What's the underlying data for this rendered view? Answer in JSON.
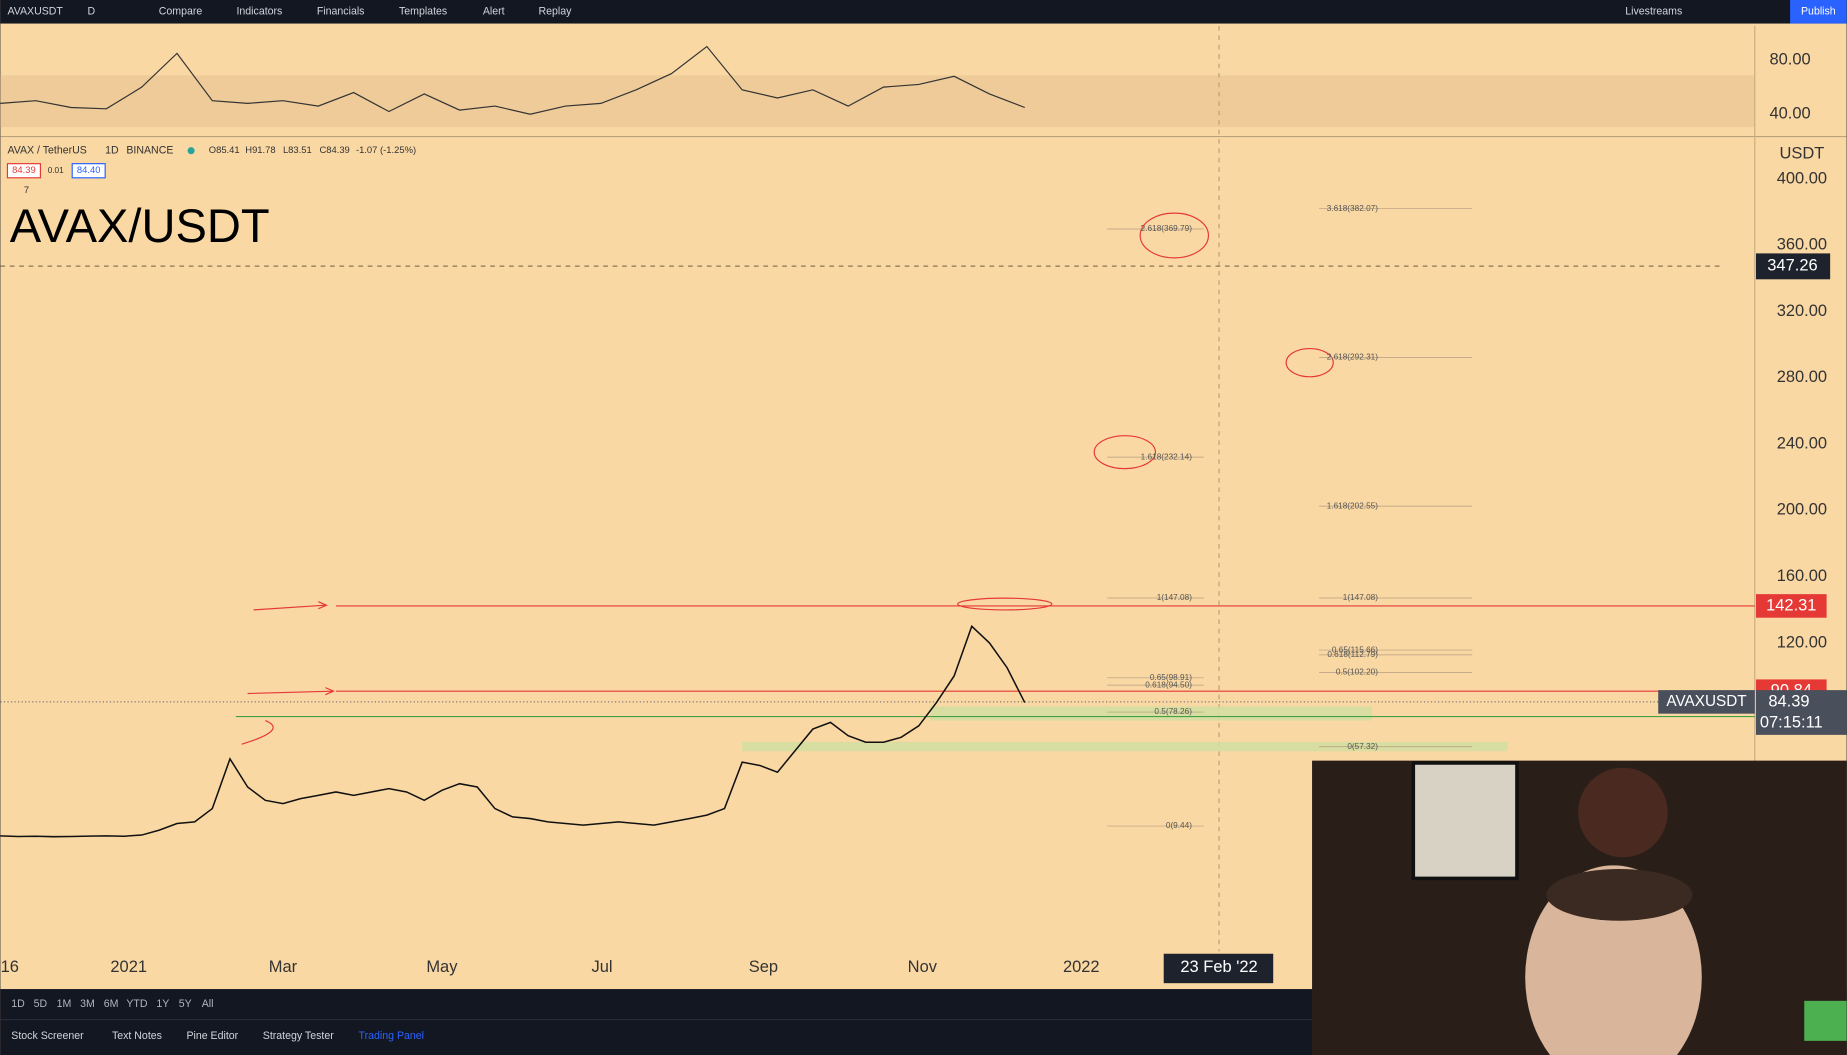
{
  "toolbar": {
    "symbol": "AVAXUSDT",
    "interval": "D",
    "items": [
      "Compare",
      "Indicators",
      "Financials",
      "Templates",
      "Alert",
      "Replay"
    ],
    "livestreams": "Livestreams",
    "publish": "Publish"
  },
  "legend": {
    "name": "AVAX / TetherUS",
    "interval": "1D",
    "exchange": "BINANCE",
    "open": "O85.41",
    "high": "H91.78",
    "low": "L83.51",
    "close": "C84.39",
    "change": "-1.07 (-1.25%)",
    "bid": "84.39",
    "spread": "0.01",
    "ask": "84.40",
    "indicator_count": "7"
  },
  "chart": {
    "title": "AVAX/USDT",
    "currency": "USDT",
    "price_ticks": [
      {
        "value": 400,
        "label": "400.00"
      },
      {
        "value": 360,
        "label": "360.00"
      },
      {
        "value": 320,
        "label": "320.00"
      },
      {
        "value": 280,
        "label": "280.00"
      },
      {
        "value": 240,
        "label": "240.00"
      },
      {
        "value": 200,
        "label": "200.00"
      },
      {
        "value": 160,
        "label": "160.00"
      },
      {
        "value": 120,
        "label": "120.00"
      }
    ],
    "rsi_ticks": [
      {
        "value": 80,
        "label": "80.00"
      },
      {
        "value": 40,
        "label": "40.00"
      }
    ],
    "time_labels": [
      "16",
      "2021",
      "Mar",
      "May",
      "Jul",
      "Sep",
      "Nov",
      "2022"
    ],
    "crosshair_date": "23 Feb '22",
    "crosshair_price": 347.26,
    "levels": [
      {
        "value": 142.31,
        "color": "#e53935"
      },
      {
        "value": 90.84,
        "color": "#e53935"
      },
      {
        "value": 75.54,
        "color": "#43a047"
      }
    ],
    "last_price": 84.39,
    "symbol_tag": "AVAXUSDT",
    "countdown": "07:15:11",
    "fib_left": [
      {
        "value": 369.79,
        "label": "2.618(369.79)"
      },
      {
        "value": 232.14,
        "label": "1.618(232.14)"
      },
      {
        "value": 147.08,
        "label": "1(147.08)"
      },
      {
        "value": 98.91,
        "label": "0.65(98.91)"
      },
      {
        "value": 94.5,
        "label": "0.618(94.50)"
      },
      {
        "value": 78.26,
        "label": "0.5(78.26)"
      },
      {
        "value": 9.44,
        "label": "0(9.44)"
      }
    ],
    "fib_right": [
      {
        "value": 382.07,
        "label": "3.618(382.07)"
      },
      {
        "value": 292.31,
        "label": "2.618(292.31)"
      },
      {
        "value": 202.55,
        "label": "1.618(202.55)"
      },
      {
        "value": 147.08,
        "label": "1(147.08)"
      },
      {
        "value": 115.66,
        "label": "0.65(115.66)"
      },
      {
        "value": 112.79,
        "label": "0.618(112.79)"
      },
      {
        "value": 102.2,
        "label": "0.5(102.20)"
      },
      {
        "value": 57.32,
        "label": "0(57.32)"
      }
    ],
    "price": [
      3.5,
      3.2,
      3.3,
      3,
      3.2,
      3.4,
      3.5,
      3.3,
      4,
      7,
      11,
      12,
      20,
      50,
      33,
      25,
      23,
      26,
      28,
      30,
      28,
      30,
      32,
      30,
      25,
      31,
      35,
      33,
      20,
      15,
      14,
      12,
      11,
      10,
      11,
      12,
      11,
      10,
      12,
      14,
      16,
      20,
      48,
      46,
      42,
      55,
      68,
      72,
      64,
      60,
      60,
      63,
      70,
      84,
      100,
      130,
      120,
      105,
      84
    ],
    "rsi": [
      48,
      50,
      45,
      44,
      60,
      85,
      50,
      48,
      50,
      46,
      56,
      42,
      55,
      43,
      46,
      40,
      46,
      48,
      58,
      70,
      90,
      58,
      52,
      58,
      46,
      60,
      62,
      68,
      55,
      45
    ]
  },
  "bottom": {
    "ranges": [
      "1D",
      "5D",
      "1M",
      "3M",
      "6M",
      "YTD",
      "1Y",
      "5Y",
      "All"
    ],
    "tabs": [
      "Stock Screener",
      "Text Notes",
      "Pine Editor",
      "Strategy Tester",
      "Trading Panel"
    ]
  }
}
